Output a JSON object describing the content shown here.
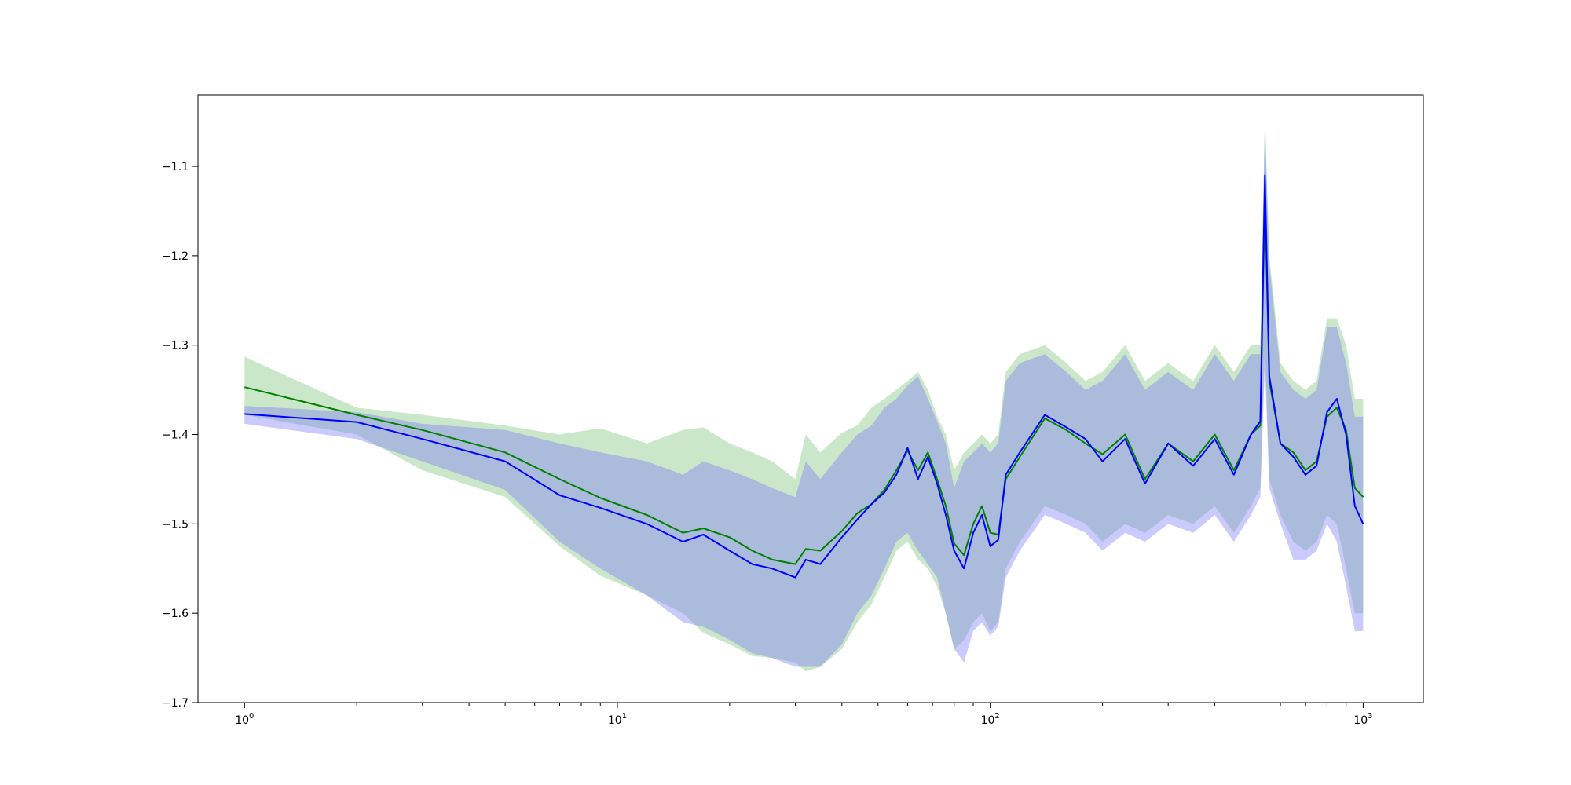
{
  "chart_data": {
    "type": "line",
    "title": "",
    "xlabel": "",
    "ylabel": "",
    "xscale": "log",
    "xlim": [
      0.75,
      1450
    ],
    "ylim": [
      -1.7,
      -1.02
    ],
    "grid": false,
    "legend": "none",
    "x_ticks": [
      {
        "base": "10",
        "exp": "0",
        "value": 1
      },
      {
        "base": "10",
        "exp": "1",
        "value": 10
      },
      {
        "base": "10",
        "exp": "2",
        "value": 100
      },
      {
        "base": "10",
        "exp": "3",
        "value": 1000
      }
    ],
    "y_ticks": [
      {
        "label": "−1.1",
        "value": -1.1
      },
      {
        "label": "−1.2",
        "value": -1.2
      },
      {
        "label": "−1.3",
        "value": -1.3
      },
      {
        "label": "−1.4",
        "value": -1.4
      },
      {
        "label": "−1.5",
        "value": -1.5
      },
      {
        "label": "−1.6",
        "value": -1.6
      },
      {
        "label": "−1.7",
        "value": -1.7
      }
    ],
    "series": [
      {
        "color": "#008000",
        "band_color": "#2ca02c",
        "x": [
          1,
          2,
          3,
          5,
          7,
          9,
          12,
          15,
          17,
          20,
          23,
          26,
          30,
          32,
          35,
          40,
          44,
          48,
          52,
          56,
          60,
          64,
          68,
          72,
          76,
          80,
          85,
          90,
          95,
          100,
          105,
          110,
          120,
          140,
          160,
          180,
          200,
          230,
          260,
          300,
          350,
          400,
          450,
          500,
          530,
          545,
          560,
          600,
          650,
          700,
          750,
          800,
          850,
          900,
          950,
          1000
        ],
        "y": [
          -1.347,
          -1.378,
          -1.395,
          -1.42,
          -1.45,
          -1.471,
          -1.49,
          -1.51,
          -1.505,
          -1.515,
          -1.53,
          -1.54,
          -1.545,
          -1.528,
          -1.53,
          -1.508,
          -1.488,
          -1.478,
          -1.462,
          -1.44,
          -1.418,
          -1.44,
          -1.42,
          -1.45,
          -1.48,
          -1.522,
          -1.535,
          -1.5,
          -1.48,
          -1.51,
          -1.512,
          -1.45,
          -1.425,
          -1.382,
          -1.395,
          -1.41,
          -1.422,
          -1.4,
          -1.45,
          -1.41,
          -1.43,
          -1.4,
          -1.44,
          -1.4,
          -1.39,
          -1.13,
          -1.34,
          -1.41,
          -1.42,
          -1.44,
          -1.43,
          -1.38,
          -1.37,
          -1.395,
          -1.46,
          -1.47
        ],
        "lower": [
          -1.378,
          -1.4,
          -1.44,
          -1.47,
          -1.525,
          -1.558,
          -1.58,
          -1.6,
          -1.622,
          -1.635,
          -1.648,
          -1.65,
          -1.655,
          -1.665,
          -1.66,
          -1.64,
          -1.61,
          -1.59,
          -1.56,
          -1.53,
          -1.52,
          -1.54,
          -1.55,
          -1.57,
          -1.6,
          -1.64,
          -1.63,
          -1.61,
          -1.6,
          -1.62,
          -1.61,
          -1.55,
          -1.52,
          -1.48,
          -1.49,
          -1.5,
          -1.52,
          -1.5,
          -1.51,
          -1.49,
          -1.5,
          -1.48,
          -1.51,
          -1.48,
          -1.46,
          -1.3,
          -1.45,
          -1.49,
          -1.52,
          -1.53,
          -1.52,
          -1.49,
          -1.5,
          -1.55,
          -1.6,
          -1.6
        ],
        "upper": [
          -1.313,
          -1.37,
          -1.378,
          -1.39,
          -1.4,
          -1.393,
          -1.41,
          -1.395,
          -1.392,
          -1.41,
          -1.42,
          -1.43,
          -1.45,
          -1.4,
          -1.42,
          -1.398,
          -1.39,
          -1.37,
          -1.36,
          -1.35,
          -1.34,
          -1.33,
          -1.35,
          -1.38,
          -1.4,
          -1.44,
          -1.42,
          -1.41,
          -1.4,
          -1.41,
          -1.4,
          -1.33,
          -1.31,
          -1.3,
          -1.32,
          -1.34,
          -1.33,
          -1.3,
          -1.34,
          -1.32,
          -1.34,
          -1.3,
          -1.33,
          -1.3,
          -1.3,
          -1.04,
          -1.2,
          -1.32,
          -1.34,
          -1.35,
          -1.34,
          -1.27,
          -1.27,
          -1.3,
          -1.36,
          -1.36
        ]
      },
      {
        "color": "#0000ff",
        "band_color": "#7b7bf7",
        "x": [
          1,
          2,
          3,
          5,
          7,
          9,
          12,
          15,
          17,
          20,
          23,
          26,
          30,
          32,
          35,
          40,
          44,
          48,
          52,
          56,
          60,
          64,
          68,
          72,
          76,
          80,
          85,
          90,
          95,
          100,
          105,
          110,
          120,
          140,
          160,
          180,
          200,
          230,
          260,
          300,
          350,
          400,
          450,
          500,
          530,
          545,
          560,
          600,
          650,
          700,
          750,
          800,
          850,
          900,
          950,
          1000
        ],
        "y": [
          -1.377,
          -1.386,
          -1.405,
          -1.43,
          -1.468,
          -1.482,
          -1.5,
          -1.52,
          -1.512,
          -1.53,
          -1.545,
          -1.55,
          -1.56,
          -1.54,
          -1.545,
          -1.515,
          -1.495,
          -1.478,
          -1.465,
          -1.445,
          -1.415,
          -1.45,
          -1.425,
          -1.455,
          -1.49,
          -1.53,
          -1.55,
          -1.51,
          -1.49,
          -1.525,
          -1.518,
          -1.445,
          -1.42,
          -1.378,
          -1.392,
          -1.405,
          -1.43,
          -1.405,
          -1.455,
          -1.41,
          -1.435,
          -1.405,
          -1.445,
          -1.4,
          -1.385,
          -1.11,
          -1.335,
          -1.41,
          -1.425,
          -1.445,
          -1.435,
          -1.375,
          -1.36,
          -1.4,
          -1.48,
          -1.5
        ],
        "lower": [
          -1.388,
          -1.405,
          -1.43,
          -1.462,
          -1.52,
          -1.55,
          -1.58,
          -1.61,
          -1.615,
          -1.63,
          -1.645,
          -1.65,
          -1.66,
          -1.66,
          -1.66,
          -1.635,
          -1.6,
          -1.58,
          -1.55,
          -1.52,
          -1.51,
          -1.53,
          -1.545,
          -1.56,
          -1.6,
          -1.64,
          -1.655,
          -1.62,
          -1.61,
          -1.625,
          -1.615,
          -1.56,
          -1.53,
          -1.49,
          -1.5,
          -1.51,
          -1.53,
          -1.51,
          -1.52,
          -1.5,
          -1.51,
          -1.49,
          -1.52,
          -1.49,
          -1.47,
          -1.32,
          -1.46,
          -1.5,
          -1.54,
          -1.54,
          -1.53,
          -1.5,
          -1.52,
          -1.57,
          -1.62,
          -1.62
        ],
        "upper": [
          -1.368,
          -1.375,
          -1.388,
          -1.395,
          -1.41,
          -1.42,
          -1.43,
          -1.445,
          -1.43,
          -1.44,
          -1.45,
          -1.46,
          -1.47,
          -1.43,
          -1.45,
          -1.42,
          -1.4,
          -1.39,
          -1.37,
          -1.36,
          -1.345,
          -1.335,
          -1.36,
          -1.385,
          -1.41,
          -1.46,
          -1.43,
          -1.42,
          -1.41,
          -1.42,
          -1.41,
          -1.34,
          -1.32,
          -1.31,
          -1.33,
          -1.35,
          -1.34,
          -1.31,
          -1.35,
          -1.33,
          -1.35,
          -1.31,
          -1.34,
          -1.31,
          -1.31,
          -1.05,
          -1.21,
          -1.33,
          -1.35,
          -1.36,
          -1.35,
          -1.28,
          -1.28,
          -1.32,
          -1.38,
          -1.38
        ]
      }
    ]
  }
}
